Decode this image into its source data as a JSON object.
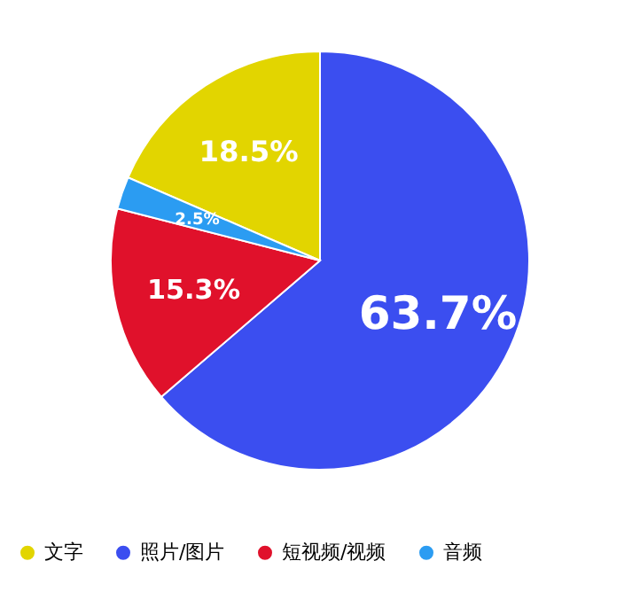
{
  "chart_data": {
    "type": "pie",
    "categories": [
      "文字",
      "照片/图片",
      "短视频/视频",
      "音频"
    ],
    "values": [
      18.5,
      63.7,
      15.3,
      2.5
    ],
    "colors": [
      "#e2d500",
      "#3b4ef0",
      "#e0112b",
      "#2b9cf2"
    ],
    "value_labels": [
      "18.5%",
      "63.7%",
      "15.3%",
      "2.5%"
    ],
    "legend": "bottom"
  }
}
